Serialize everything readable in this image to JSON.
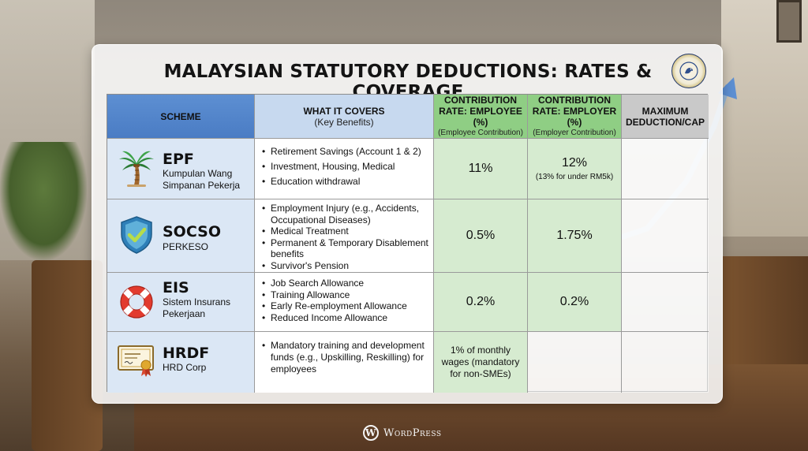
{
  "title": "MALAYSIAN STATUTORY DEDUCTIONS: RATES & COVERAGE",
  "headers": {
    "scheme": "SCHEME",
    "covers_main": "WHAT IT COVERS",
    "covers_sub": "(Key Benefits)",
    "employee_main": "CONTRIBUTION RATE: EMPLOYEE (%)",
    "employee_sub": "(Employee Contribution)",
    "employer_main": "CONTRIBUTION RATE: EMPLOYER (%)",
    "employer_sub": "(Employer Contribution)",
    "max_main": "MAXIMUM DEDUCTION/CAP"
  },
  "rows": [
    {
      "icon": "palm-tree-icon",
      "name": "EPF",
      "subtitle": [
        "Kumpulan Wang",
        "Simpanan Pekerja"
      ],
      "covers": [
        "Retirement Savings (Account 1 & 2)",
        "Investment, Housing, Medical",
        "Education withdrawal"
      ],
      "employee": "11%",
      "employer": "12%",
      "employer_note": "(13% for under RM5k)",
      "max": ""
    },
    {
      "icon": "shield-check-icon",
      "name": "SOCSO",
      "subtitle": [
        "PERKESO"
      ],
      "covers": [
        "Employment Injury (e.g., Accidents, Occupational Diseases)",
        "Medical Treatment",
        "Permanent & Temporary Disablement benefits",
        "Survivor's Pension"
      ],
      "employee": "0.5%",
      "employer": "1.75%",
      "max": ""
    },
    {
      "icon": "lifebuoy-icon",
      "name": "EIS",
      "subtitle": [
        "Sistem Insurans",
        "Pekerjaan"
      ],
      "covers": [
        "Job Search Allowance",
        "Training Allowance",
        "Early Re-employment Allowance",
        "Reduced Income Allowance"
      ],
      "employee": "0.2%",
      "employer": "0.2%",
      "max": ""
    },
    {
      "icon": "certificate-icon",
      "name": "HRDF",
      "subtitle": [
        "HRD Corp"
      ],
      "covers": [
        "Mandatory training and development funds (e.g., Upskilling, Reskilling) for employees"
      ],
      "employee": "1% of monthly wages (mandatory for non-SMEs)",
      "employer": "",
      "max": ""
    }
  ],
  "watermark": "WordPress",
  "watermark_glyph": "W",
  "colors": {
    "header_scheme": "#4a7cc4",
    "header_covers": "#c7d9ef",
    "header_rate": "#8fce84",
    "header_max": "#c9c9c9",
    "cell_scheme": "#dbe7f5",
    "cell_rate": "#d6ebd0"
  }
}
